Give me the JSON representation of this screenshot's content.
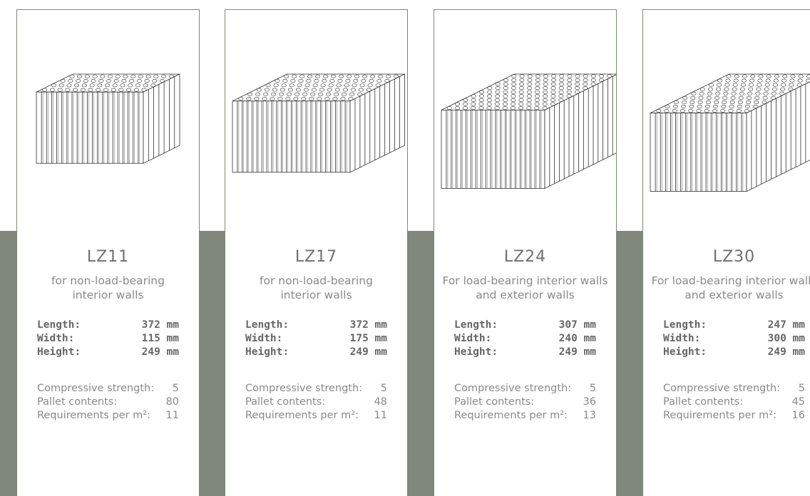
{
  "colors": {
    "band": "#7f887a",
    "card_border": "#7f887a",
    "text": "#7b7b7b"
  },
  "products": [
    {
      "name": "LZ11",
      "icon": "brick-block-narrow-icon",
      "description": "for non-load-bearing\ninterior walls",
      "dimensions": [
        {
          "label": "Length:",
          "value": "372 mm"
        },
        {
          "label": "Width:",
          "value": "115 mm"
        },
        {
          "label": "Height:",
          "value": "249 mm"
        }
      ],
      "specs": [
        {
          "label": "Compressive strength:",
          "value": "5"
        },
        {
          "label": "Pallet contents:",
          "value": "80"
        },
        {
          "label": "Requirements per m²:",
          "value": "11"
        }
      ]
    },
    {
      "name": "LZ17",
      "icon": "brick-block-medium-icon",
      "description": "for non-load-bearing\ninterior walls",
      "dimensions": [
        {
          "label": "Length:",
          "value": "372 mm"
        },
        {
          "label": "Width:",
          "value": "175 mm"
        },
        {
          "label": "Height:",
          "value": "249 mm"
        }
      ],
      "specs": [
        {
          "label": "Compressive strength:",
          "value": "5"
        },
        {
          "label": "Pallet contents:",
          "value": "48"
        },
        {
          "label": "Requirements per m²:",
          "value": "11"
        }
      ]
    },
    {
      "name": "LZ24",
      "icon": "brick-block-wide-icon",
      "description": "For load-bearing interior walls\nand exterior walls",
      "dimensions": [
        {
          "label": "Length:",
          "value": "307 mm"
        },
        {
          "label": "Width:",
          "value": "240 mm"
        },
        {
          "label": "Height:",
          "value": "249 mm"
        }
      ],
      "specs": [
        {
          "label": "Compressive strength:",
          "value": "5"
        },
        {
          "label": "Pallet contents:",
          "value": "36"
        },
        {
          "label": "Requirements per m²:",
          "value": "13"
        }
      ]
    },
    {
      "name": "LZ30",
      "icon": "brick-block-cube-icon",
      "description": "For load-bearing interior walls\nand exterior walls",
      "dimensions": [
        {
          "label": "Length:",
          "value": "247 mm"
        },
        {
          "label": "Width:",
          "value": "300 mm"
        },
        {
          "label": "Height:",
          "value": "249 mm"
        }
      ],
      "specs": [
        {
          "label": "Compressive strength:",
          "value": "5"
        },
        {
          "label": "Pallet contents:",
          "value": "45"
        },
        {
          "label": "Requirements per m²:",
          "value": "16"
        }
      ]
    }
  ]
}
